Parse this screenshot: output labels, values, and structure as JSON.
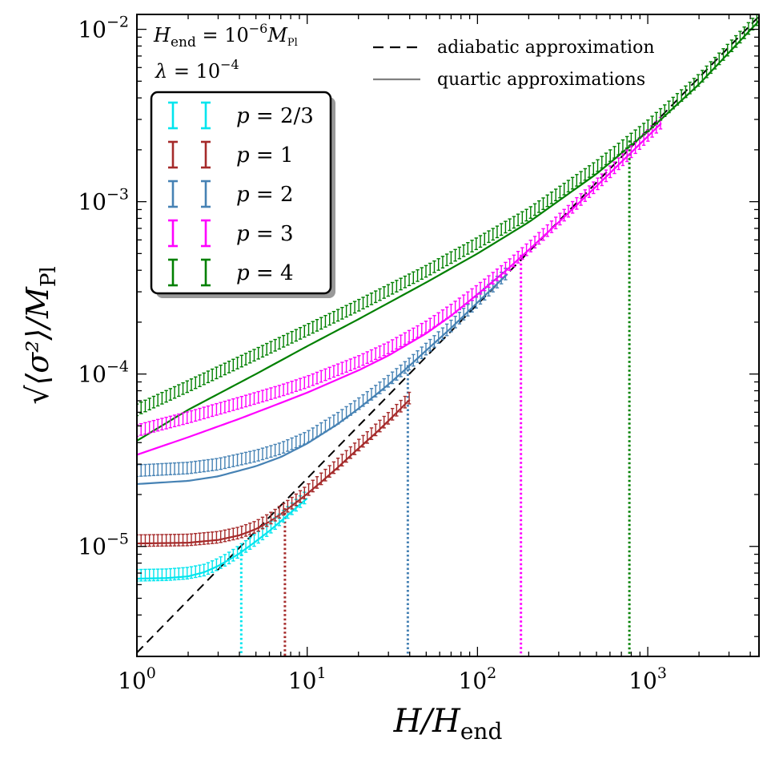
{
  "chart_data": {
    "type": "line",
    "xscale": "log",
    "yscale": "log",
    "xlim": [
      1,
      4500
    ],
    "ylim": [
      2.3e-06,
      0.0122
    ],
    "xlabel": "H/H_end",
    "ylabel": "√⟨σ²⟩/M_Pl",
    "xticks": [
      {
        "value": 1,
        "base": "10",
        "exp": "0"
      },
      {
        "value": 10,
        "base": "10",
        "exp": "1"
      },
      {
        "value": 100,
        "base": "10",
        "exp": "2"
      },
      {
        "value": 1000,
        "base": "10",
        "exp": "3"
      }
    ],
    "yticks": [
      {
        "value": 1e-05,
        "base": "10",
        "exp": "−5"
      },
      {
        "value": 0.0001,
        "base": "10",
        "exp": "−4"
      },
      {
        "value": 0.001,
        "base": "10",
        "exp": "−3"
      },
      {
        "value": 0.01,
        "base": "10",
        "exp": "−2"
      }
    ],
    "annotations": {
      "hend": {
        "lhs": "H",
        "lhs_sub": "end",
        "eq": " = 10",
        "exp": "−6",
        "rhs": "M",
        "rhs_sub": "Pl"
      },
      "lambda": {
        "lhs": "λ",
        "eq": " = 10",
        "exp": "−4"
      }
    },
    "adiabatic": {
      "label": "adiabatic approximation",
      "color": "#000000",
      "x": [
        1,
        4500
      ],
      "y": [
        2.42e-06,
        0.0119
      ]
    },
    "quartic_legend_label": "quartic approximations",
    "quartic_legend_color": "#808080",
    "series": [
      {
        "name": "p = 2/3",
        "p_value": "2/3",
        "color": "#00e5ee",
        "crossover_x": 4.1,
        "quartic": {
          "x": [
            1,
            1.5,
            2,
            2.5,
            3,
            3.5,
            4,
            5,
            6,
            7,
            8,
            9,
            10
          ],
          "y": [
            6.5e-06,
            6.55e-06,
            6.7e-06,
            7.1e-06,
            7.7e-06,
            8.4e-06,
            9.1e-06,
            1.07e-05,
            1.23e-05,
            1.4e-05,
            1.57e-05,
            1.74e-05,
            1.9e-05
          ]
        },
        "numerical": {
          "x": [
            1,
            1.5,
            2,
            2.5,
            3,
            3.5,
            4,
            5,
            6,
            7,
            8,
            9,
            10
          ],
          "y": [
            6.8e-06,
            6.85e-06,
            7e-06,
            7.3e-06,
            7.9e-06,
            8.6e-06,
            9.4e-06,
            1.1e-05,
            1.27e-05,
            1.45e-05,
            1.63e-05,
            1.8e-05,
            1.97e-05
          ]
        }
      },
      {
        "name": "p = 1",
        "p_value": "1",
        "color": "#a52a2a",
        "crossover_x": 7.4,
        "quartic": {
          "x": [
            1,
            2,
            3,
            4,
            5,
            6,
            7,
            8,
            9,
            10,
            12,
            15,
            20,
            25,
            30,
            40
          ],
          "y": [
            1.04e-05,
            1.05e-05,
            1.09e-05,
            1.16e-05,
            1.26e-05,
            1.39e-05,
            1.54e-05,
            1.7e-05,
            1.86e-05,
            2.02e-05,
            2.35e-05,
            2.85e-05,
            3.7e-05,
            4.5e-05,
            5.35e-05,
            7.1e-05
          ]
        },
        "numerical": {
          "x": [
            1,
            2,
            3,
            4,
            5,
            6,
            7,
            8,
            9,
            10,
            12,
            15,
            20,
            25,
            30,
            40
          ],
          "y": [
            1.08e-05,
            1.09e-05,
            1.13e-05,
            1.2e-05,
            1.3e-05,
            1.44e-05,
            1.6e-05,
            1.76e-05,
            1.93e-05,
            2.1e-05,
            2.45e-05,
            2.98e-05,
            3.85e-05,
            4.7e-05,
            5.55e-05,
            7.3e-05
          ]
        }
      },
      {
        "name": "p = 2",
        "p_value": "2",
        "color": "#4682b4",
        "crossover_x": 39,
        "quartic": {
          "x": [
            1,
            2,
            3,
            5,
            7,
            10,
            15,
            20,
            25,
            30,
            40,
            50,
            70,
            100,
            150
          ],
          "y": [
            2.3e-05,
            2.4e-05,
            2.55e-05,
            2.92e-05,
            3.3e-05,
            3.95e-05,
            5.1e-05,
            6.3e-05,
            7.5e-05,
            8.7e-05,
            0.000112,
            0.000137,
            0.000185,
            0.00026,
            0.00038
          ]
        },
        "numerical": {
          "x": [
            1,
            2,
            3,
            5,
            7,
            10,
            15,
            20,
            25,
            30,
            40,
            50,
            70,
            100,
            150
          ],
          "y": [
            2.75e-05,
            2.85e-05,
            3e-05,
            3.35e-05,
            3.7e-05,
            4.3e-05,
            5.5e-05,
            6.7e-05,
            7.9e-05,
            9.1e-05,
            0.000115,
            0.00014,
            0.00019,
            0.000265,
            0.00039
          ]
        }
      },
      {
        "name": "p = 3",
        "p_value": "3",
        "color": "#ff00ff",
        "crossover_x": 180,
        "quartic": {
          "x": [
            1,
            2,
            4,
            7,
            10,
            20,
            30,
            50,
            70,
            100,
            150,
            200,
            300,
            500,
            800,
            1200
          ],
          "y": [
            3.4e-05,
            4.3e-05,
            5.5e-05,
            6.8e-05,
            7.8e-05,
            0.000105,
            0.000128,
            0.000172,
            0.000218,
            0.00029,
            0.000405,
            0.000525,
            0.00076,
            0.00123,
            0.00193,
            0.00285
          ]
        },
        "numerical": {
          "x": [
            1,
            2,
            4,
            7,
            10,
            20,
            30,
            50,
            70,
            100,
            150,
            200,
            300,
            500,
            800,
            1200
          ],
          "y": [
            4.7e-05,
            5.6e-05,
            6.8e-05,
            8e-05,
            9e-05,
            0.000118,
            0.000142,
            0.000188,
            0.000235,
            0.000305,
            0.00042,
            0.00054,
            0.00078,
            0.00125,
            0.00195,
            0.00288
          ]
        }
      },
      {
        "name": "p = 4",
        "p_value": "4",
        "color": "#008000",
        "crossover_x": 780,
        "quartic": {
          "x": [
            1,
            2,
            5,
            10,
            20,
            50,
            100,
            200,
            500,
            1000,
            2000,
            4500
          ],
          "y": [
            4.1e-05,
            6.2e-05,
            0.0001,
            0.000145,
            0.000208,
            0.00034,
            0.0005,
            0.00076,
            0.00145,
            0.00255,
            0.0048,
            0.0112
          ]
        },
        "numerical": {
          "x": [
            1,
            2,
            5,
            10,
            20,
            50,
            100,
            200,
            500,
            1000,
            2000,
            4500
          ],
          "y": [
            6.2e-05,
            8.5e-05,
            0.00013,
            0.00018,
            0.00025,
            0.000395,
            0.000575,
            0.00085,
            0.0016,
            0.00275,
            0.0051,
            0.0117
          ]
        }
      }
    ]
  }
}
